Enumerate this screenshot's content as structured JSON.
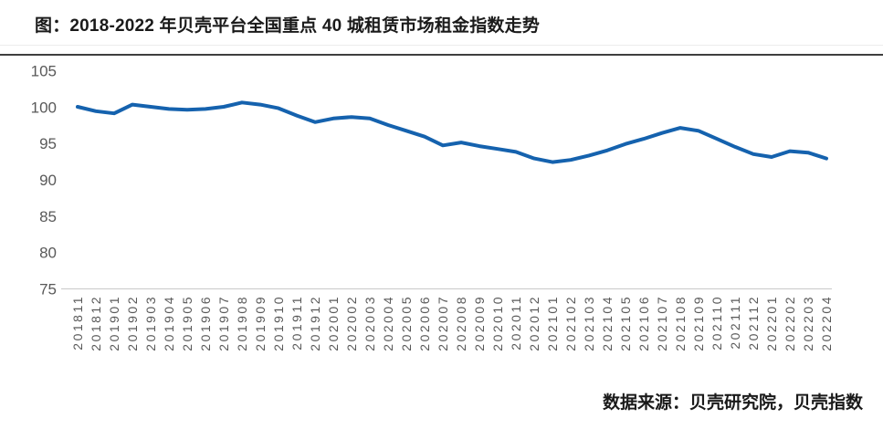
{
  "page": {
    "title": "图：2018-2022 年贝壳平台全国重点 40 城租赁市场租金指数走势",
    "source_note": "数据来源：贝壳研究院，贝壳指数"
  },
  "colors": {
    "line": "#1562ae",
    "axis_line": "#c9c9c9",
    "tick_label": "#595959",
    "separator": "#3f3f3f",
    "background": "#ffffff"
  },
  "chart_data": {
    "type": "line",
    "title": "图：2018-2022 年贝壳平台全国重点 40 城租赁市场租金指数走势",
    "categories": [
      "201811",
      "201812",
      "201901",
      "201902",
      "201903",
      "201904",
      "201905",
      "201906",
      "201907",
      "201908",
      "201909",
      "201910",
      "201911",
      "201912",
      "202001",
      "202002",
      "202003",
      "202004",
      "202005",
      "202006",
      "202007",
      "202008",
      "202009",
      "202010",
      "202011",
      "202012",
      "202101",
      "202102",
      "202103",
      "202104",
      "202105",
      "202106",
      "202107",
      "202108",
      "202109",
      "202110",
      "202111",
      "202112",
      "202201",
      "202202",
      "202203",
      "202204"
    ],
    "values": [
      100.1,
      99.5,
      99.2,
      100.4,
      100.1,
      99.8,
      99.7,
      99.8,
      100.1,
      100.7,
      100.4,
      99.9,
      98.9,
      98.0,
      98.5,
      98.7,
      98.5,
      97.6,
      96.8,
      96.0,
      94.8,
      95.2,
      94.7,
      94.3,
      93.9,
      93.0,
      92.5,
      92.8,
      93.4,
      94.1,
      95.0,
      95.7,
      96.5,
      97.2,
      96.8,
      95.7,
      94.6,
      93.6,
      93.2,
      94.0,
      93.8,
      93.0
    ],
    "ylim": [
      75,
      105
    ],
    "yticks": [
      105,
      100,
      95,
      90,
      85,
      80,
      75
    ],
    "grid": false,
    "legend": "none",
    "x_label_rotation": -90,
    "xlabel": "",
    "ylabel": ""
  }
}
